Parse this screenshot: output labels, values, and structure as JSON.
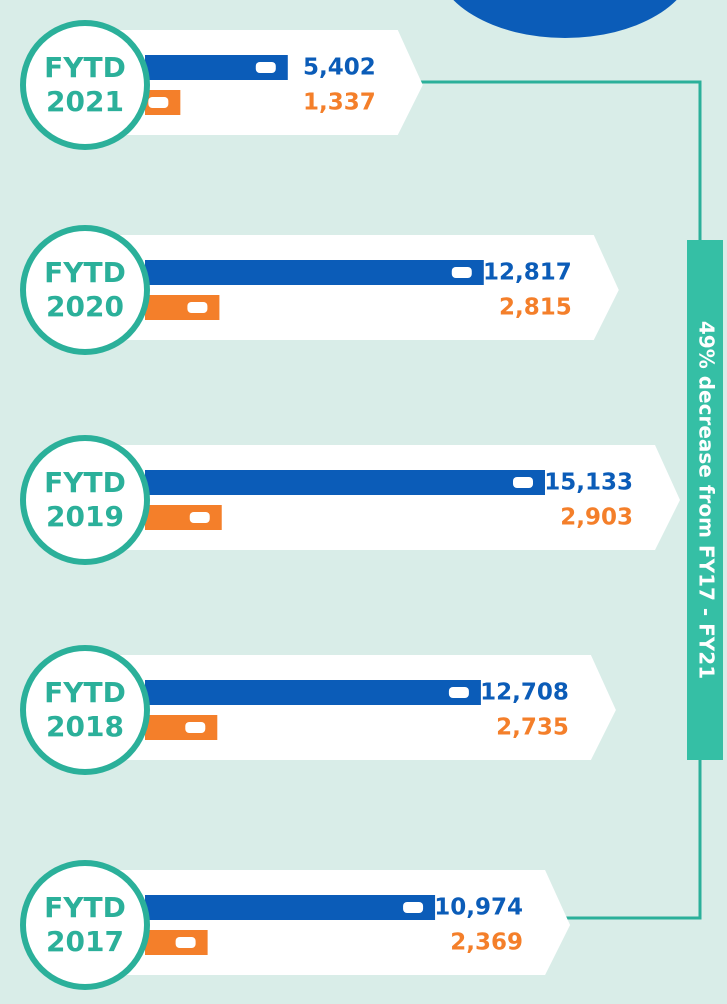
{
  "chart_data": {
    "type": "bar",
    "orientation": "horizontal",
    "categories": [
      "FYTD 2021",
      "FYTD 2020",
      "FYTD 2019",
      "FYTD 2018",
      "FYTD 2017"
    ],
    "series": [
      {
        "color": "#0b5cb8",
        "values": [
          5402,
          12817,
          15133,
          12708,
          10974
        ],
        "value_labels": [
          "5,402",
          "12,817",
          "15,133",
          "12,708",
          "10,974"
        ]
      },
      {
        "color": "#f47f2a",
        "values": [
          1337,
          2815,
          2903,
          2735,
          2369
        ],
        "value_labels": [
          "1,337",
          "2,815",
          "2,903",
          "2,735",
          "2,369"
        ]
      }
    ],
    "annotation": "49% decrease from FY17 - FY21"
  }
}
